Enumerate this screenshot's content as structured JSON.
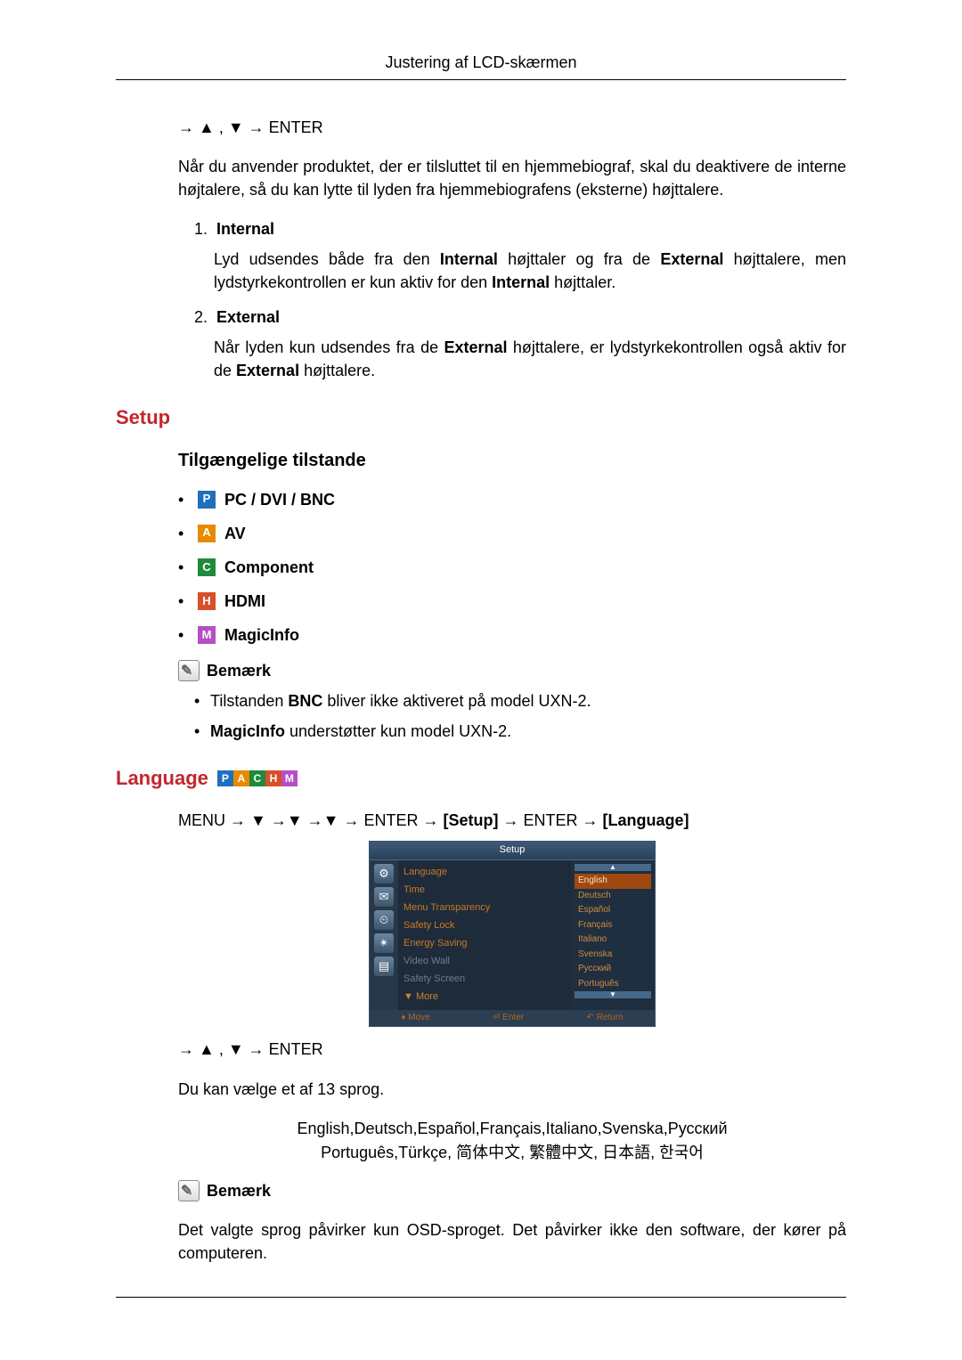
{
  "header": {
    "title": "Justering af LCD-skærmen"
  },
  "top": {
    "nav": "→ ▲ , ▼ → ENTER",
    "intro": "Når du anvender produktet, der er tilsluttet til en hjemmebiograf, skal du deaktivere de interne højtalere, så du kan lytte til lyden fra hjemmebiografens (eksterne) højttalere.",
    "items": [
      {
        "num": "1.",
        "title": "Internal",
        "desc_parts": [
          "Lyd udsendes både fra den ",
          "Internal",
          " højttaler og fra de ",
          "External",
          " højttalere, men lydstyrkekontrollen er kun aktiv for den ",
          "Internal",
          " højttaler."
        ]
      },
      {
        "num": "2.",
        "title": "External",
        "desc_parts": [
          "Når lyden kun udsendes fra de ",
          "External",
          " højttalere, er lydstyrkekontrollen også aktiv for de ",
          "External",
          " højttalere."
        ]
      }
    ]
  },
  "setup": {
    "heading": "Setup",
    "modes_heading": "Tilgængelige tilstande",
    "modes": [
      {
        "letter": "P",
        "color": "#1f6fbf",
        "label": "PC / DVI / BNC"
      },
      {
        "letter": "A",
        "color": "#e68a00",
        "label": "AV"
      },
      {
        "letter": "C",
        "color": "#1f8a3b",
        "label": "Component"
      },
      {
        "letter": "H",
        "color": "#d94f2a",
        "label": "HDMI"
      },
      {
        "letter": "M",
        "color": "#b54fc4",
        "label": "MagicInfo"
      }
    ],
    "note_label": "Bemærk",
    "notes": [
      {
        "parts": [
          "Tilstanden ",
          "BNC",
          " bliver ikke aktiveret på model UXN-2."
        ]
      },
      {
        "parts": [
          "",
          "MagicInfo",
          " understøtter kun model UXN-2."
        ]
      }
    ]
  },
  "language": {
    "heading": "Language",
    "badge_strip": [
      {
        "letter": "P",
        "color": "#1f6fbf"
      },
      {
        "letter": "A",
        "color": "#e68a00"
      },
      {
        "letter": "C",
        "color": "#1f8a3b"
      },
      {
        "letter": "H",
        "color": "#d94f2a"
      },
      {
        "letter": "M",
        "color": "#b54fc4"
      }
    ],
    "path_parts": [
      "MENU → ▼ →▼ →▼ → ENTER → ",
      "[Setup]",
      " → ENTER → ",
      "[Language]"
    ],
    "osd": {
      "title": "Setup",
      "side_icons": [
        "⚙",
        "✉",
        "⏲",
        "✴",
        "▤"
      ],
      "menu": [
        {
          "label": "Language",
          "dim": false
        },
        {
          "label": "Time",
          "dim": false
        },
        {
          "label": "Menu Transparency",
          "dim": false
        },
        {
          "label": "Safety Lock",
          "dim": false
        },
        {
          "label": "Energy Saving",
          "dim": false
        },
        {
          "label": "Video Wall",
          "dim": true
        },
        {
          "label": "Safety Screen",
          "dim": true
        }
      ],
      "more": "▼ More",
      "langs": [
        "English",
        "Deutsch",
        "Español",
        "Français",
        "Italiano",
        "Svenska",
        "Русский",
        "Português"
      ],
      "lang_selected_index": 0,
      "footer": [
        "♦ Move",
        "⏎ Enter",
        "↶ Return"
      ]
    },
    "nav": "→ ▲ , ▼ → ENTER",
    "desc": "Du kan vælge et af 13 sprog.",
    "lang_text_lines": [
      "English,Deutsch,Español,Français,Italiano,Svenska,Русский",
      "Português,Türkçe, 简体中文,  繁體中文, 日本語, 한국어"
    ],
    "note_label": "Bemærk",
    "note_body": "Det valgte sprog påvirker kun OSD-sproget. Det påvirker ikke den software, der kører på computeren."
  }
}
